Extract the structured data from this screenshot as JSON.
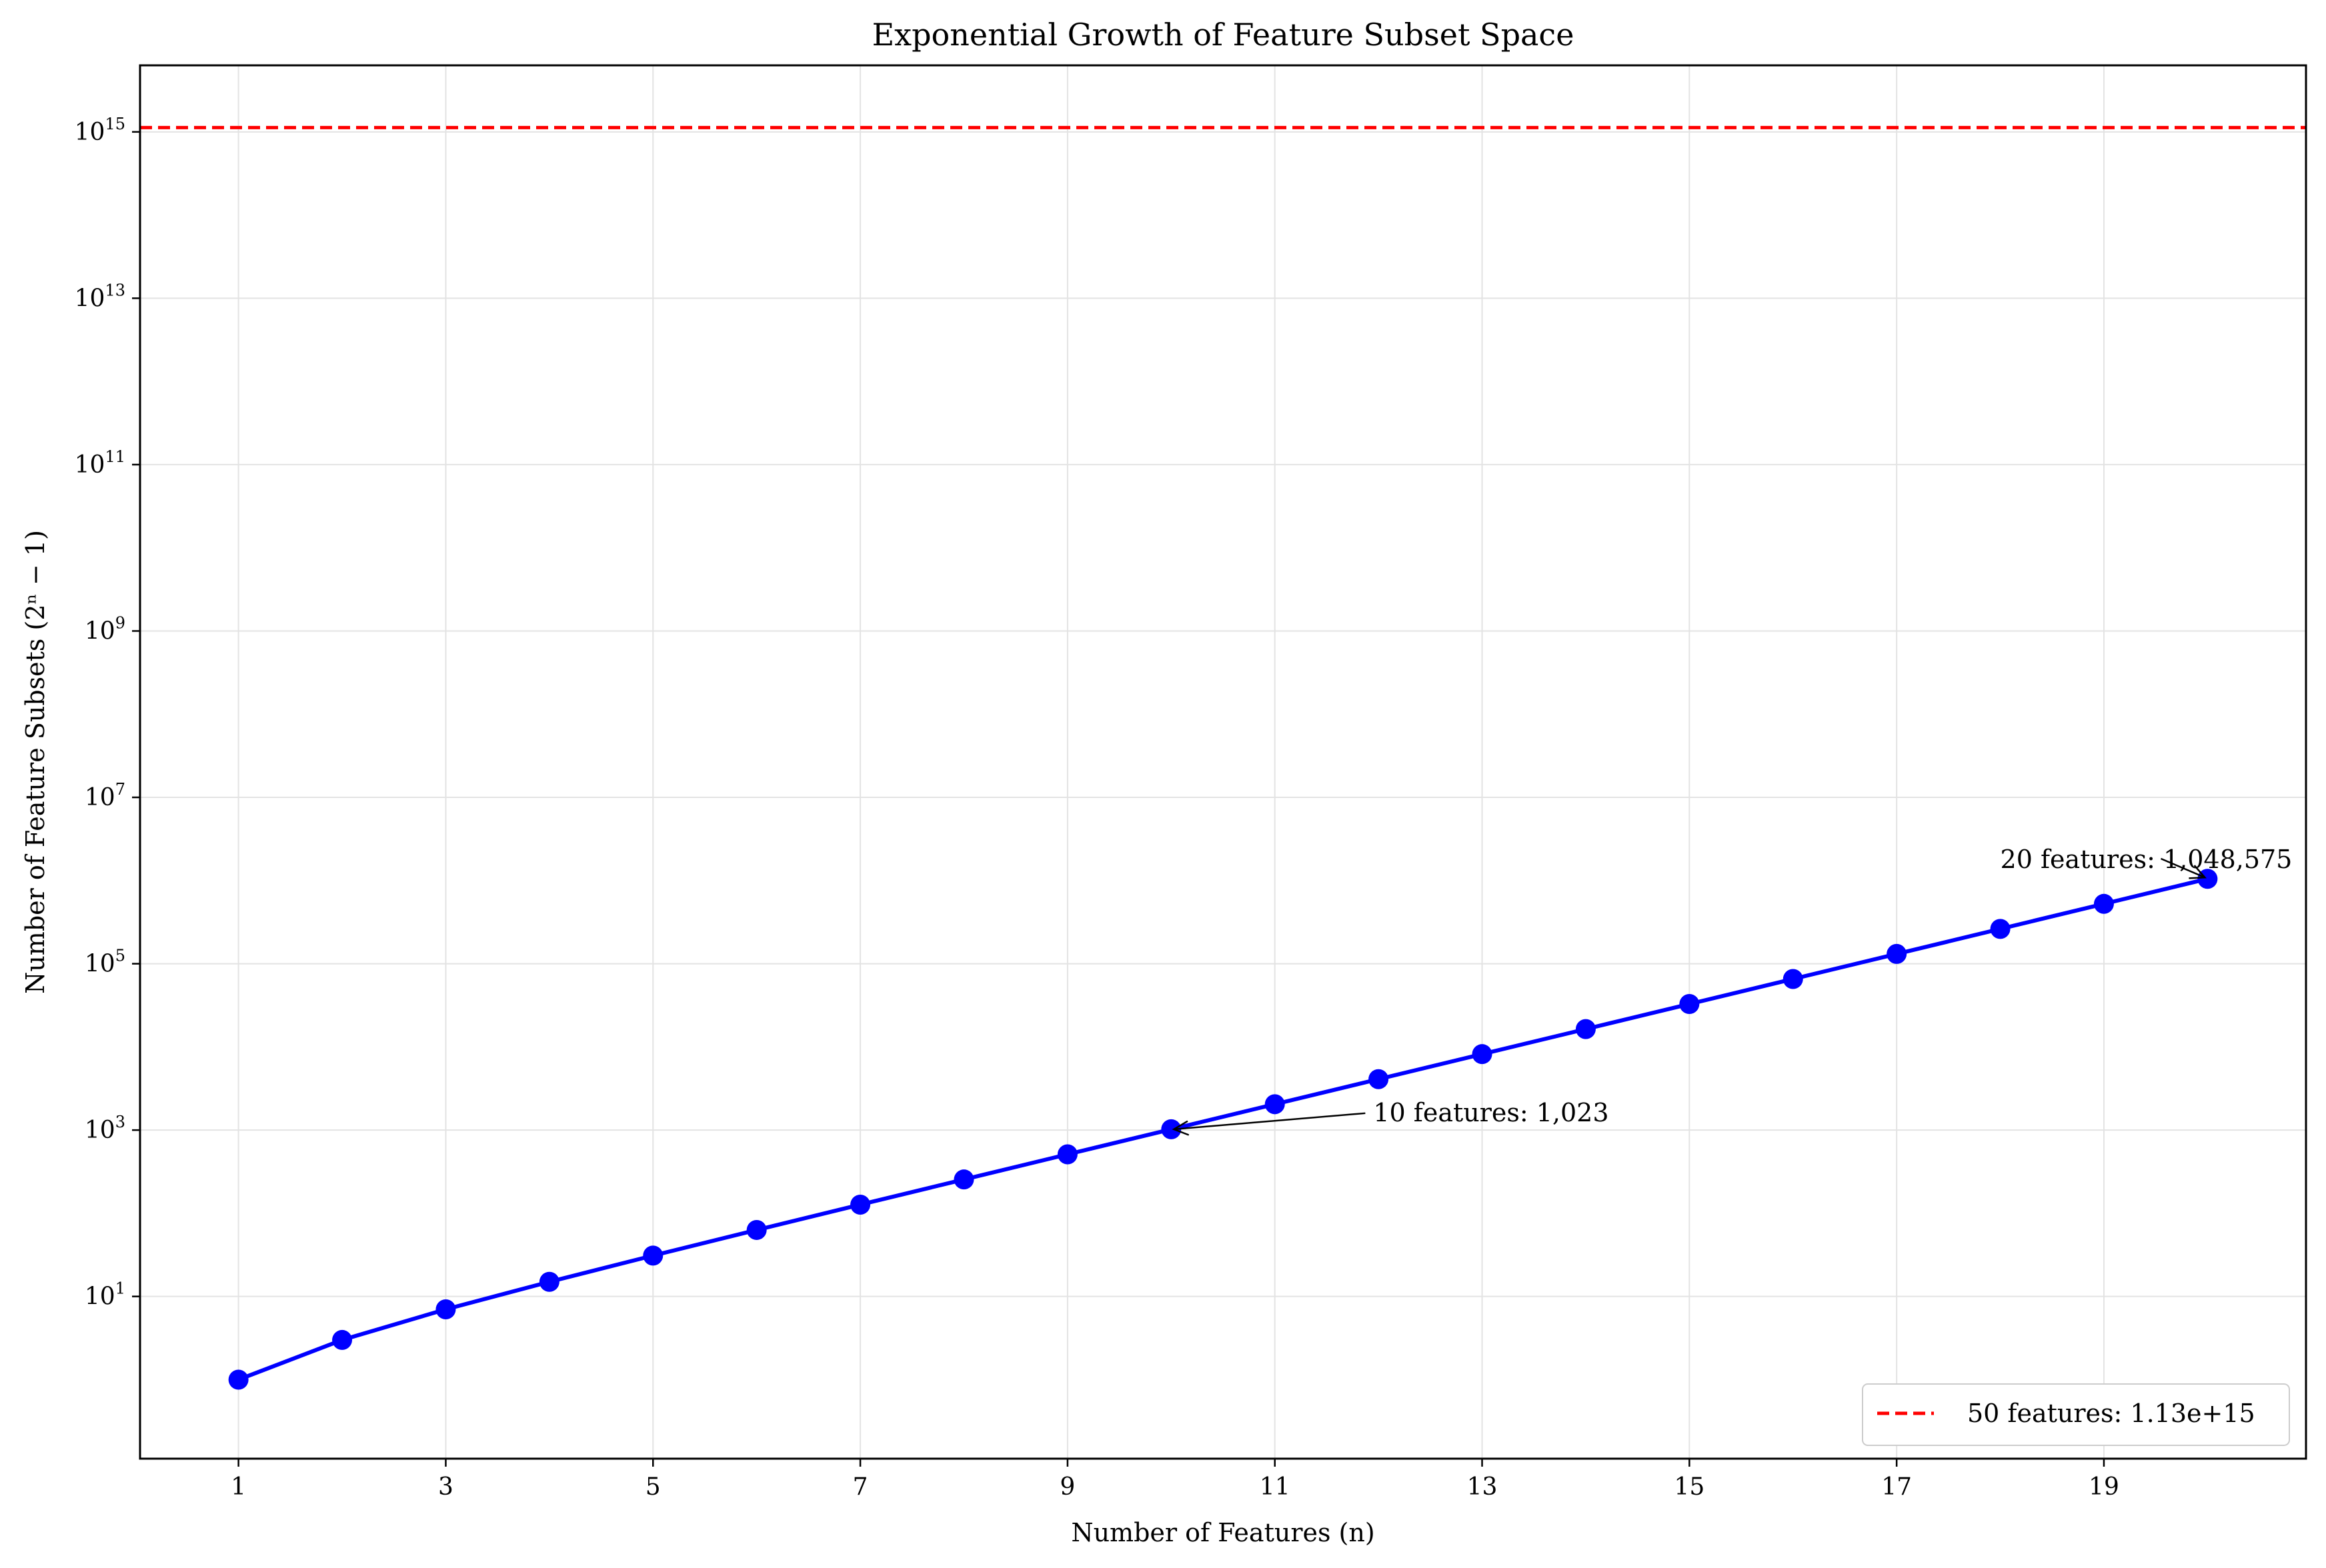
{
  "chart_data": {
    "type": "line",
    "title": "Exponential Growth of Feature Subset Space",
    "xlabel": "Number of Features (n)",
    "ylabel": "Number of Feature Subsets (2ⁿ − 1)",
    "xlim": [
      0.05,
      20.95
    ],
    "ylim_log10": [
      -0.95,
      15.8
    ],
    "yscale": "log",
    "grid": true,
    "x_ticks": [
      1,
      3,
      5,
      7,
      9,
      11,
      13,
      15,
      17,
      19
    ],
    "y_tick_exponents": [
      1,
      3,
      5,
      7,
      9,
      11,
      13,
      15
    ],
    "y_tick_base": "10",
    "series": [
      {
        "color": "#0000ff",
        "x": [
          1,
          2,
          3,
          4,
          5,
          6,
          7,
          8,
          9,
          10,
          11,
          12,
          13,
          14,
          15,
          16,
          17,
          18,
          19,
          20
        ],
        "y": [
          1,
          3,
          7,
          15,
          31,
          63,
          127,
          255,
          511,
          1023,
          2047,
          4095,
          8191,
          16383,
          32767,
          65535,
          131071,
          262143,
          524287,
          1048575
        ]
      }
    ],
    "reference_line": {
      "label": "50 features: 1.13e+15",
      "y": 1125899906842623,
      "color": "#ff0000",
      "style": "dashed"
    },
    "annotations": [
      {
        "text": "10 features: 1,023",
        "point_x": 10,
        "point_y": 1023
      },
      {
        "text": "20 features: 1,048,575",
        "point_x": 20,
        "point_y": 1048575
      }
    ],
    "legend_position": "lower-right"
  }
}
